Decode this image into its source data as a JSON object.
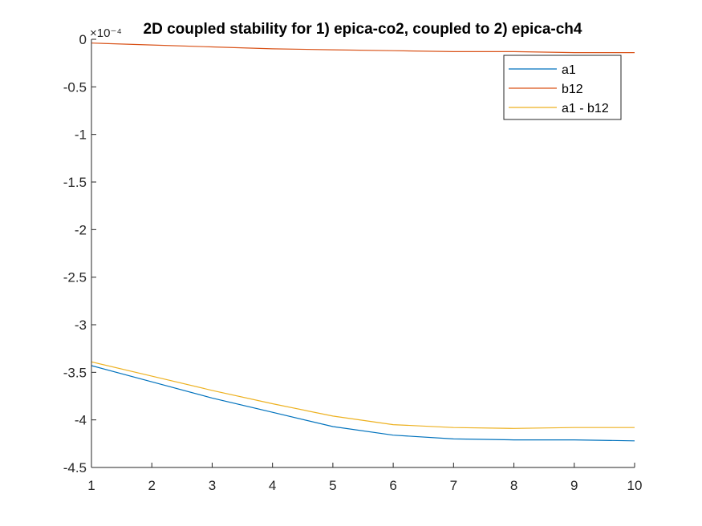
{
  "chart_data": {
    "type": "line",
    "title": "2D coupled stability for 1) epica-co2, coupled to 2) epica-ch4",
    "y_exponent_label": "×10⁻⁴",
    "y_scale": 0.0001,
    "xlim": [
      1,
      10
    ],
    "ylim": [
      -4.5,
      0
    ],
    "x_ticks": [
      1,
      2,
      3,
      4,
      5,
      6,
      7,
      8,
      9,
      10
    ],
    "x_tick_labels": [
      "1",
      "2",
      "3",
      "4",
      "5",
      "6",
      "7",
      "8",
      "9",
      "10"
    ],
    "y_ticks": [
      0,
      -0.5,
      -1,
      -1.5,
      -2,
      -2.5,
      -3,
      -3.5,
      -4,
      -4.5
    ],
    "y_tick_labels": [
      "0",
      "-0.5",
      "-1",
      "-1.5",
      "-2",
      "-2.5",
      "-3",
      "-3.5",
      "-4",
      "-4.5"
    ],
    "grid": false,
    "legend_position": "top-right",
    "x": [
      1,
      2,
      3,
      4,
      5,
      6,
      7,
      8,
      9,
      10
    ],
    "series": [
      {
        "name": "a1",
        "color": "#0072BD",
        "values": [
          -3.43,
          -3.6,
          -3.77,
          -3.92,
          -4.07,
          -4.16,
          -4.2,
          -4.21,
          -4.21,
          -4.22
        ]
      },
      {
        "name": "b12",
        "color": "#D95319",
        "values": [
          -0.04,
          -0.06,
          -0.08,
          -0.1,
          -0.11,
          -0.12,
          -0.13,
          -0.13,
          -0.14,
          -0.14
        ]
      },
      {
        "name": "a1 - b12",
        "color": "#EDB120",
        "values": [
          -3.39,
          -3.54,
          -3.69,
          -3.83,
          -3.96,
          -4.05,
          -4.08,
          -4.09,
          -4.08,
          -4.08
        ]
      }
    ]
  }
}
